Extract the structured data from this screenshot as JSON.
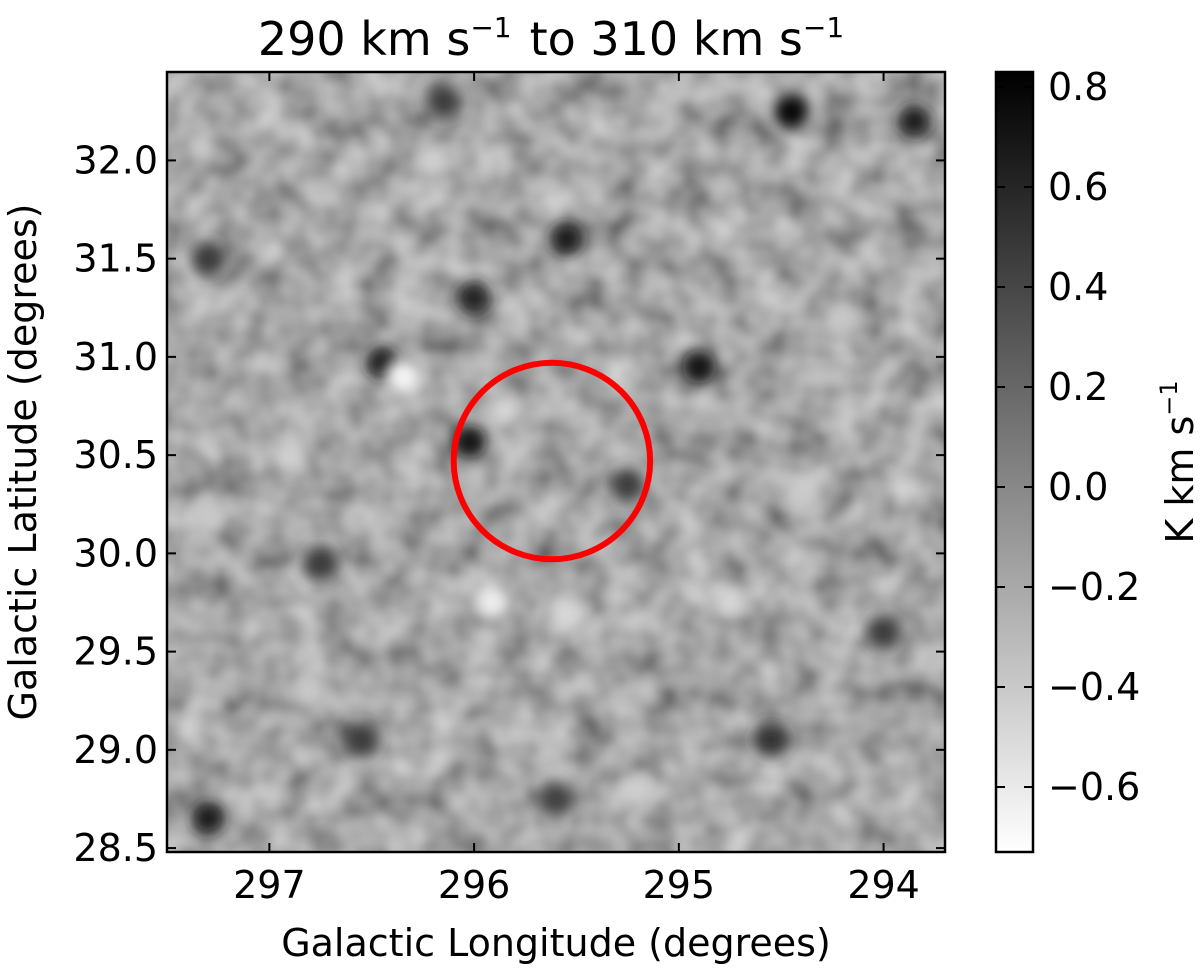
{
  "chart_data": {
    "type": "heatmap",
    "title_parts": {
      "a": "290 km s",
      "a_sup": "−1",
      "b": "to 310 km s",
      "b_sup": "−1"
    },
    "xlabel": "Galactic Longitude (degrees)",
    "ylabel": "Galactic Latitude (degrees)",
    "xlim": [
      297.5,
      293.7
    ],
    "ylim": [
      28.48,
      32.45
    ],
    "x_ticks": [
      {
        "value": 297,
        "label": "297"
      },
      {
        "value": 296,
        "label": "296"
      },
      {
        "value": 295,
        "label": "295"
      },
      {
        "value": 294,
        "label": "294"
      }
    ],
    "y_ticks": [
      {
        "value": 28.5,
        "label": "28.5"
      },
      {
        "value": 29.0,
        "label": "29.0"
      },
      {
        "value": 29.5,
        "label": "29.5"
      },
      {
        "value": 30.0,
        "label": "30.0"
      },
      {
        "value": 30.5,
        "label": "30.5"
      },
      {
        "value": 31.0,
        "label": "31.0"
      },
      {
        "value": 31.5,
        "label": "31.5"
      },
      {
        "value": 32.0,
        "label": "32.0"
      }
    ],
    "colorbar": {
      "label_text": "K km s",
      "label_sup": "−1",
      "colormap": "gray_r",
      "range": [
        -0.73,
        0.83
      ],
      "ticks": [
        {
          "value": 0.8,
          "label": "0.8"
        },
        {
          "value": 0.6,
          "label": "0.6"
        },
        {
          "value": 0.4,
          "label": "0.4"
        },
        {
          "value": 0.2,
          "label": "0.2"
        },
        {
          "value": 0.0,
          "label": "0.0"
        },
        {
          "value": -0.2,
          "label": "−0.2"
        },
        {
          "value": -0.4,
          "label": "−0.4"
        },
        {
          "value": -0.6,
          "label": "−0.6"
        }
      ]
    },
    "annotation_circle": {
      "center_l": 295.62,
      "center_b": 30.47,
      "radius_deg": 0.5,
      "color": "#ff0000"
    },
    "noise_features": [
      {
        "l": 296.02,
        "b": 30.57,
        "value": 0.75
      },
      {
        "l": 296.45,
        "b": 30.97,
        "value": 0.7
      },
      {
        "l": 295.55,
        "b": 31.6,
        "value": 0.7
      },
      {
        "l": 296.0,
        "b": 31.3,
        "value": 0.65
      },
      {
        "l": 294.9,
        "b": 30.95,
        "value": 0.75
      },
      {
        "l": 294.45,
        "b": 32.25,
        "value": 0.8
      },
      {
        "l": 293.85,
        "b": 32.2,
        "value": 0.7
      },
      {
        "l": 297.3,
        "b": 28.65,
        "value": 0.7
      },
      {
        "l": 295.25,
        "b": 30.35,
        "value": 0.5
      },
      {
        "l": 294.55,
        "b": 29.05,
        "value": 0.55
      },
      {
        "l": 296.75,
        "b": 29.95,
        "value": 0.5
      },
      {
        "l": 294.0,
        "b": 29.6,
        "value": 0.5
      },
      {
        "l": 296.15,
        "b": 32.3,
        "value": 0.5
      },
      {
        "l": 297.3,
        "b": 31.5,
        "value": 0.5
      },
      {
        "l": 296.55,
        "b": 29.05,
        "value": 0.5
      },
      {
        "l": 295.6,
        "b": 28.75,
        "value": 0.45
      },
      {
        "l": 296.35,
        "b": 30.9,
        "value": -0.7
      },
      {
        "l": 295.92,
        "b": 29.75,
        "value": -0.65
      },
      {
        "l": 295.55,
        "b": 29.7,
        "value": -0.5
      },
      {
        "l": 295.85,
        "b": 30.73,
        "value": -0.5
      },
      {
        "l": 296.9,
        "b": 30.5,
        "value": -0.45
      },
      {
        "l": 294.75,
        "b": 29.75,
        "value": -0.5
      },
      {
        "l": 296.2,
        "b": 32.0,
        "value": -0.45
      },
      {
        "l": 294.4,
        "b": 30.3,
        "value": -0.4
      },
      {
        "l": 295.2,
        "b": 28.8,
        "value": -0.45
      },
      {
        "l": 297.3,
        "b": 30.2,
        "value": -0.4
      },
      {
        "l": 294.2,
        "b": 31.2,
        "value": -0.4
      },
      {
        "l": 296.8,
        "b": 29.3,
        "value": -0.4
      }
    ]
  }
}
